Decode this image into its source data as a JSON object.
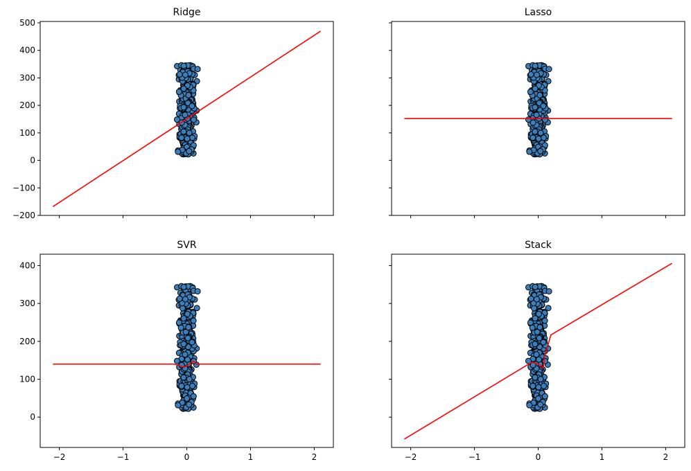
{
  "chart_data": [
    {
      "type": "scatter",
      "title": "Ridge",
      "xlim": [
        -2.3,
        2.3
      ],
      "ylim": [
        -200,
        505
      ],
      "xticks": [
        -2,
        -1,
        0,
        1,
        2
      ],
      "yticks": [
        -200,
        -100,
        0,
        100,
        200,
        300,
        400,
        500
      ],
      "show_xticklabels": false,
      "show_yticklabels": true,
      "line": {
        "name": "",
        "color": "#ff0000",
        "x": [
          -2.1,
          2.1
        ],
        "y": [
          -168,
          470
        ]
      }
    },
    {
      "type": "scatter",
      "title": "Lasso",
      "xlim": [
        -2.3,
        2.3
      ],
      "ylim": [
        -200,
        505
      ],
      "xticks": [
        -2,
        -1,
        0,
        1,
        2
      ],
      "yticks": [
        -200,
        -100,
        0,
        100,
        200,
        300,
        400,
        500
      ],
      "show_xticklabels": false,
      "show_yticklabels": false,
      "line": {
        "name": "",
        "color": "#ff0000",
        "x": [
          -2.1,
          2.1
        ],
        "y": [
          152,
          152
        ]
      }
    },
    {
      "type": "scatter",
      "title": "SVR",
      "xlim": [
        -2.3,
        2.3
      ],
      "ylim": [
        -80,
        430
      ],
      "xticks": [
        -2,
        -1,
        0,
        1,
        2
      ],
      "yticks": [
        0,
        100,
        200,
        300,
        400
      ],
      "show_xticklabels": true,
      "show_yticklabels": true,
      "line": {
        "name": "",
        "color": "#ff0000",
        "x": [
          -2.1,
          -0.2,
          -0.12,
          -0.05,
          0.0,
          0.06,
          0.1,
          0.15,
          0.2,
          2.1
        ],
        "y": [
          140,
          140,
          136,
          132,
          135,
          142,
          148,
          140,
          140,
          140
        ]
      }
    },
    {
      "type": "scatter",
      "title": "Stack",
      "xlim": [
        -2.3,
        2.3
      ],
      "ylim": [
        -80,
        430
      ],
      "xticks": [
        -2,
        -1,
        0,
        1,
        2
      ],
      "yticks": [
        0,
        100,
        200,
        300,
        400
      ],
      "show_xticklabels": true,
      "show_yticklabels": false,
      "line": {
        "name": "",
        "color": "#ff0000",
        "x": [
          -2.1,
          -0.1,
          0.0,
          0.08,
          0.1,
          0.2,
          2.1
        ],
        "y": [
          -58,
          145,
          140,
          130,
          160,
          217,
          406
        ]
      }
    }
  ],
  "scatter_style": {
    "fill": "#3a80bd",
    "edge": "#000000",
    "n_points": 440,
    "x_center": 0.0,
    "x_spread": 0.16,
    "y_min": 22,
    "y_max": 346
  },
  "text": {
    "titles": [
      "Ridge",
      "Lasso",
      "SVR",
      "Stack"
    ],
    "ticks_top": [
      "500",
      "400",
      "300",
      "200",
      "100",
      "0",
      "−100",
      "−200"
    ],
    "ticks_bottom_y": [
      "400",
      "300",
      "200",
      "100",
      "0"
    ],
    "ticks_bottom_x": [
      "−2",
      "−1",
      "0",
      "1",
      "2"
    ]
  }
}
